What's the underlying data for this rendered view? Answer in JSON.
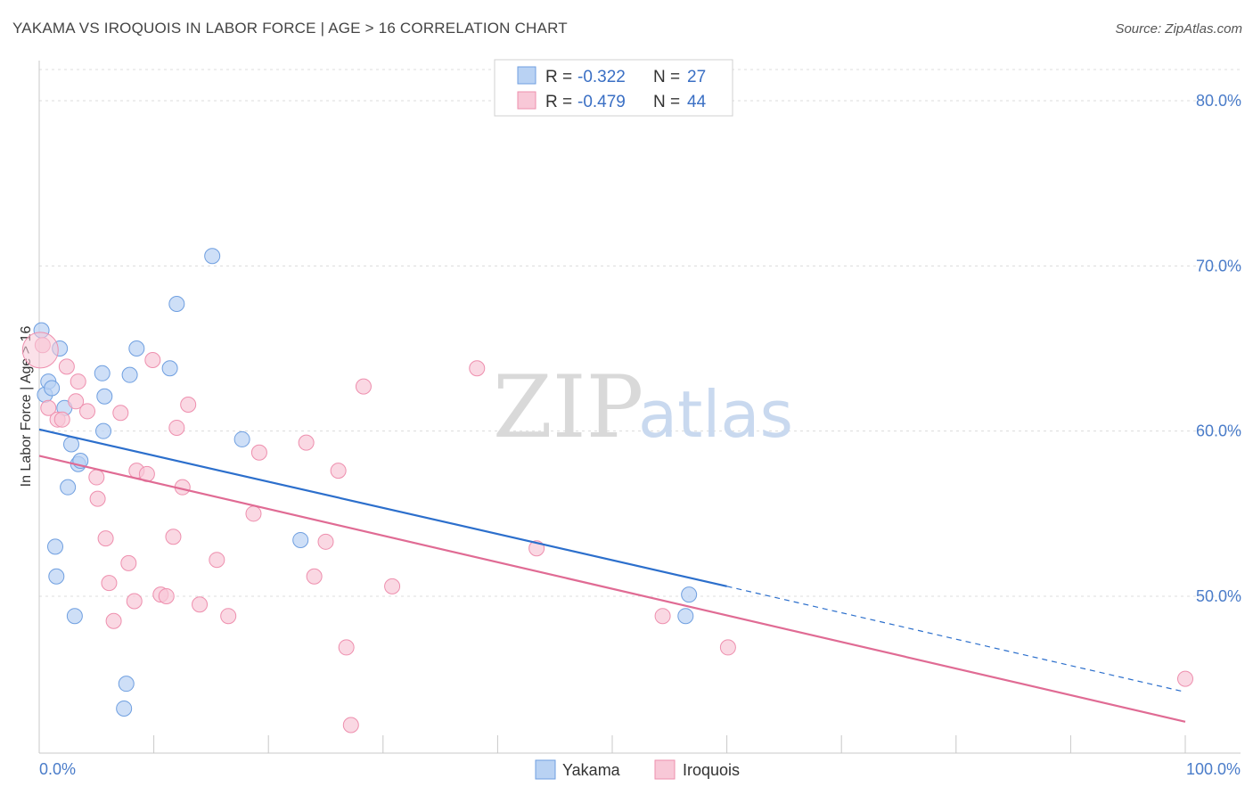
{
  "chart_data": {
    "type": "scatter",
    "title": "YAKAMA VS IROQUOIS IN LABOR FORCE | AGE > 16 CORRELATION CHART",
    "source": "Source: ZipAtlas.com",
    "ylabel": "In Labor Force | Age > 16",
    "xlim": [
      0,
      100
    ],
    "ylim": [
      40.5,
      82
    ],
    "x_tick_labels": [
      "0.0%",
      "100.0%"
    ],
    "y_ticks": [
      {
        "value": 50,
        "label": "50.0%"
      },
      {
        "value": 60,
        "label": "60.0%"
      },
      {
        "value": 70,
        "label": "70.0%"
      },
      {
        "value": 80,
        "label": "80.0%"
      }
    ],
    "watermark": {
      "zip": "ZIP",
      "atlas": "atlas"
    },
    "legend": [
      {
        "r_label": "R = ",
        "r_value": "-0.322",
        "n_label": "N = ",
        "n_value": "27"
      },
      {
        "r_label": "R = ",
        "r_value": "-0.479",
        "n_label": "N = ",
        "n_value": "44"
      }
    ],
    "series": [
      {
        "name": "Yakama",
        "color": "#6f9fe0",
        "fill": "#b9d2f3",
        "line_color": "#2c6fcc",
        "trend": {
          "x0": 0,
          "y0": 60.1,
          "x1": 60,
          "y1": 50.6,
          "dash_to_x": 100,
          "dash_to_y": 44.2
        },
        "points": [
          [
            0.2,
            66.1
          ],
          [
            0.5,
            62.2
          ],
          [
            0.8,
            63.0
          ],
          [
            1.1,
            62.6
          ],
          [
            1.8,
            65.0
          ],
          [
            2.2,
            61.4
          ],
          [
            2.8,
            59.2
          ],
          [
            3.4,
            58.0
          ],
          [
            3.6,
            58.2
          ],
          [
            2.5,
            56.6
          ],
          [
            1.4,
            53.0
          ],
          [
            1.5,
            51.2
          ],
          [
            3.1,
            48.8
          ],
          [
            5.6,
            60.0
          ],
          [
            5.7,
            62.1
          ],
          [
            5.5,
            63.5
          ],
          [
            7.9,
            63.4
          ],
          [
            8.5,
            65.0
          ],
          [
            11.4,
            63.8
          ],
          [
            12.0,
            67.7
          ],
          [
            15.1,
            70.6
          ],
          [
            17.7,
            59.5
          ],
          [
            22.8,
            53.4
          ],
          [
            7.6,
            44.7
          ],
          [
            7.4,
            43.2
          ],
          [
            56.4,
            48.8
          ],
          [
            56.7,
            50.1
          ]
        ]
      },
      {
        "name": "Iroquois",
        "color": "#ee8fae",
        "fill": "#f8c8d7",
        "line_color": "#e06b94",
        "trend": {
          "x0": 0,
          "y0": 58.5,
          "x1": 100,
          "y1": 42.4
        },
        "points": [
          [
            0.3,
            65.2
          ],
          [
            0.8,
            61.4
          ],
          [
            1.6,
            60.7
          ],
          [
            2.0,
            60.7
          ],
          [
            2.4,
            63.9
          ],
          [
            3.2,
            61.8
          ],
          [
            3.4,
            63.0
          ],
          [
            4.2,
            61.2
          ],
          [
            5.0,
            57.2
          ],
          [
            5.1,
            55.9
          ],
          [
            5.8,
            53.5
          ],
          [
            6.1,
            50.8
          ],
          [
            6.5,
            48.5
          ],
          [
            7.1,
            61.1
          ],
          [
            7.8,
            52.0
          ],
          [
            8.3,
            49.7
          ],
          [
            8.5,
            57.6
          ],
          [
            9.4,
            57.4
          ],
          [
            9.9,
            64.3
          ],
          [
            10.6,
            50.1
          ],
          [
            11.1,
            50.0
          ],
          [
            11.7,
            53.6
          ],
          [
            12.0,
            60.2
          ],
          [
            12.5,
            56.6
          ],
          [
            13.0,
            61.6
          ],
          [
            14.0,
            49.5
          ],
          [
            15.5,
            52.2
          ],
          [
            16.5,
            48.8
          ],
          [
            19.2,
            58.7
          ],
          [
            18.7,
            55.0
          ],
          [
            23.3,
            59.3
          ],
          [
            24.0,
            51.2
          ],
          [
            25.0,
            53.3
          ],
          [
            26.1,
            57.6
          ],
          [
            26.8,
            46.9
          ],
          [
            27.2,
            42.2
          ],
          [
            28.3,
            62.7
          ],
          [
            30.8,
            50.6
          ],
          [
            38.2,
            63.8
          ],
          [
            43.4,
            52.9
          ],
          [
            54.4,
            48.8
          ],
          [
            60.1,
            46.9
          ],
          [
            100.0,
            45.0
          ],
          [
            0.1,
            64.9
          ]
        ]
      }
    ]
  }
}
